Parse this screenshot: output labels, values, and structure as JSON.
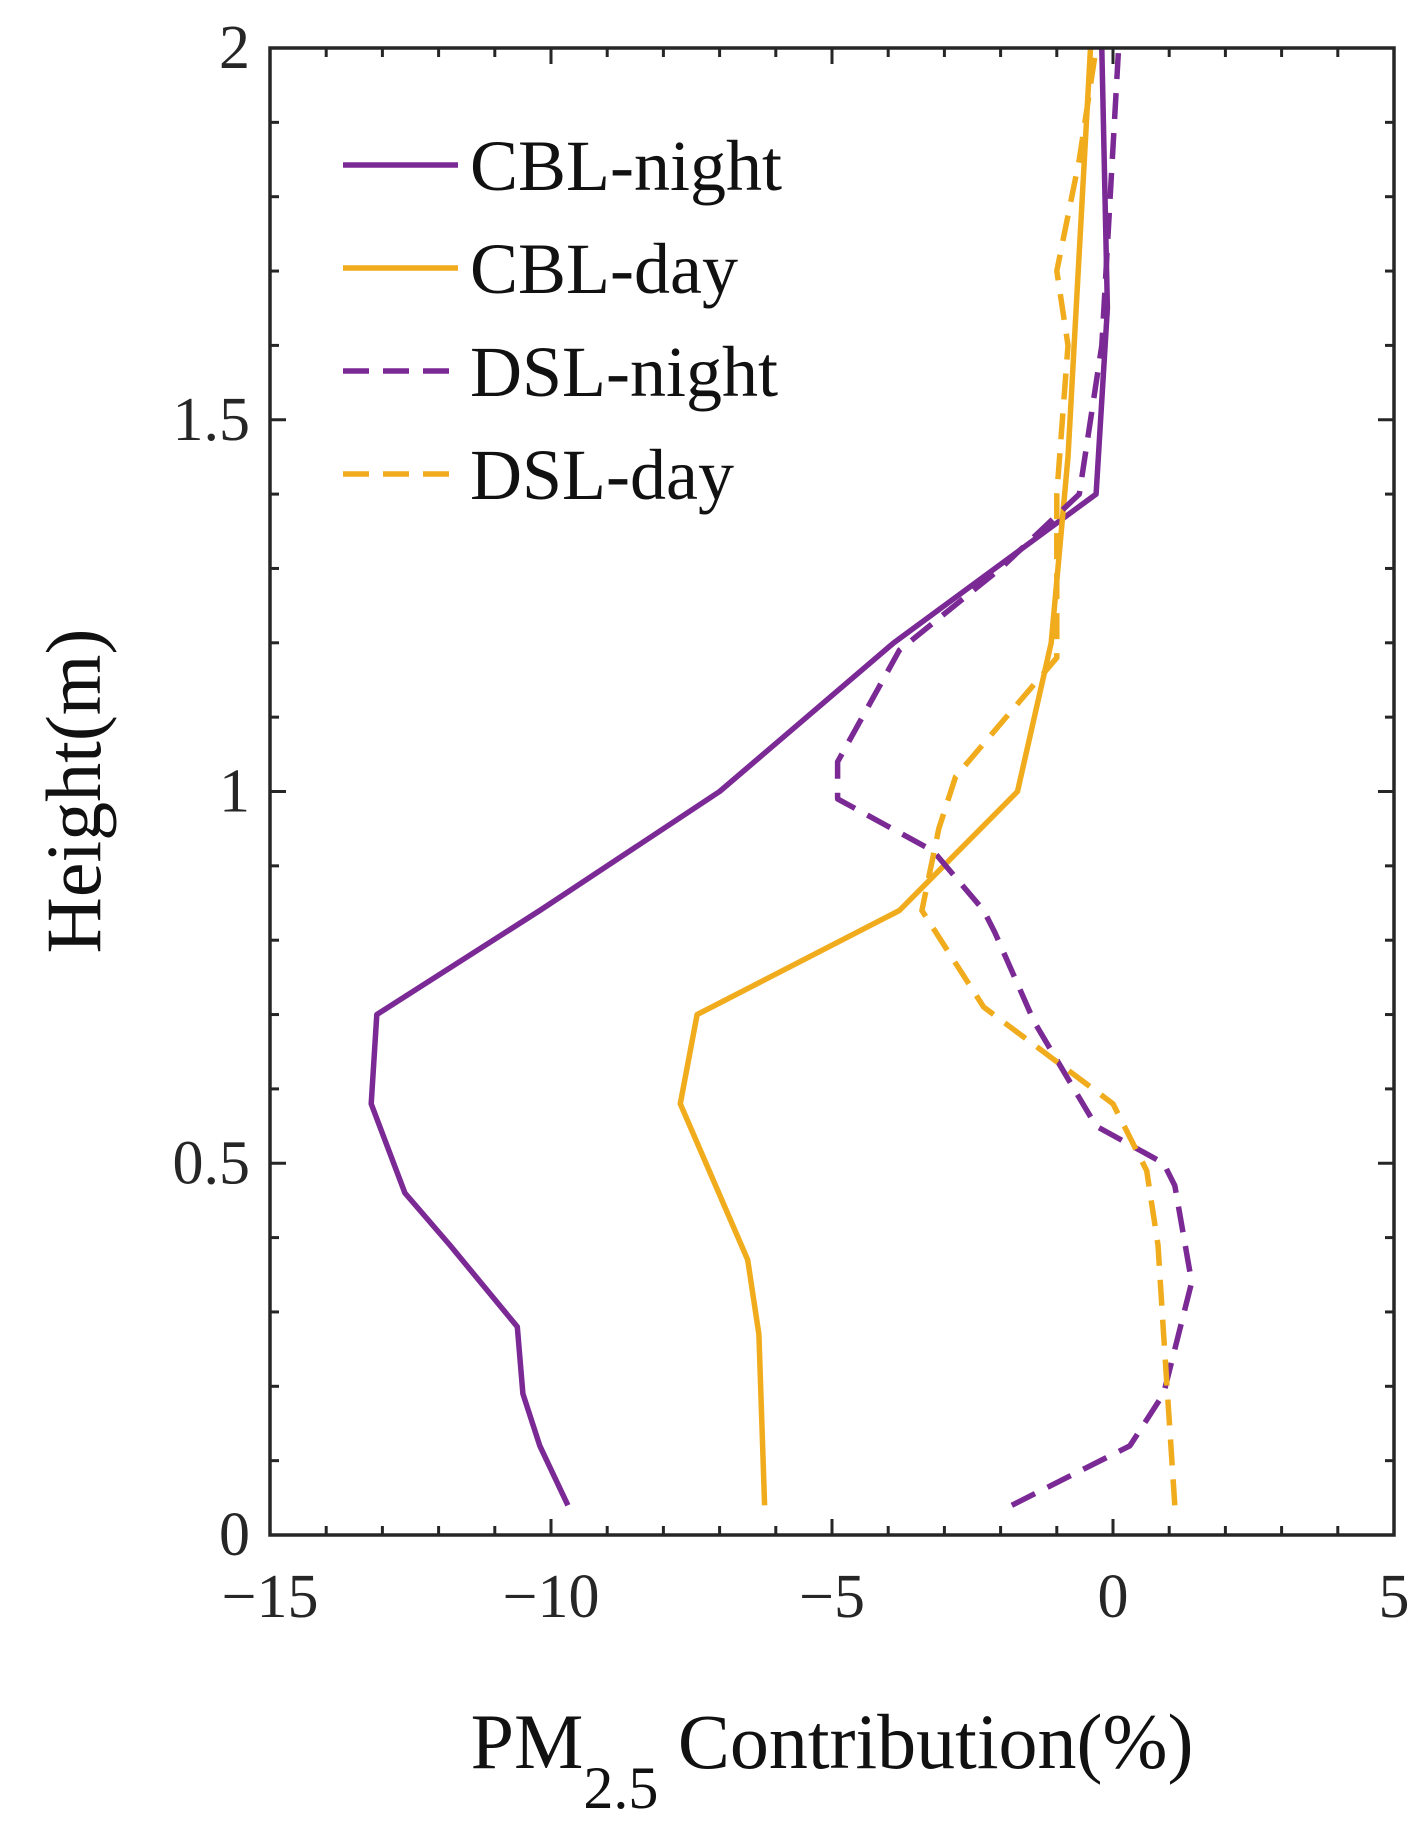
{
  "chart_data": {
    "type": "line",
    "title": "",
    "xlabel": "PM",
    "xlabel_subscript": "2.5",
    "xlabel_suffix": " Contribution(%)",
    "ylabel": "Height(m)",
    "xlim": [
      -15,
      5
    ],
    "ylim": [
      0,
      2
    ],
    "xticks": [
      -15,
      -10,
      -5,
      0,
      5
    ],
    "xtick_labels": [
      "−15",
      "−10",
      "−5",
      "0",
      "5"
    ],
    "xminor_step": 1,
    "yticks": [
      0,
      0.5,
      1,
      1.5,
      2
    ],
    "ytick_labels": [
      "0",
      "0.5",
      "1",
      "1.5",
      "2"
    ],
    "yminor_step": 0.1,
    "grid": false,
    "legend_position": "top-left",
    "series": [
      {
        "name": "CBL-night",
        "color": "#7b2a95",
        "style": "solid",
        "points": [
          [
            -9.7,
            0.04
          ],
          [
            -10.2,
            0.12
          ],
          [
            -10.5,
            0.19
          ],
          [
            -10.6,
            0.28
          ],
          [
            -11.8,
            0.39
          ],
          [
            -12.6,
            0.46
          ],
          [
            -13.2,
            0.58
          ],
          [
            -13.1,
            0.7
          ],
          [
            -10.2,
            0.84
          ],
          [
            -7.0,
            1.0
          ],
          [
            -3.9,
            1.2
          ],
          [
            -0.3,
            1.4
          ],
          [
            -0.1,
            1.65
          ],
          [
            -0.2,
            2.0
          ]
        ]
      },
      {
        "name": "CBL-day",
        "color": "#f0ac1c",
        "style": "solid",
        "points": [
          [
            -6.2,
            0.04
          ],
          [
            -6.3,
            0.27
          ],
          [
            -6.5,
            0.37
          ],
          [
            -7.7,
            0.58
          ],
          [
            -7.4,
            0.7
          ],
          [
            -3.8,
            0.84
          ],
          [
            -1.7,
            1.0
          ],
          [
            -1.1,
            1.2
          ],
          [
            -0.8,
            1.45
          ],
          [
            -0.4,
            2.0
          ]
        ]
      },
      {
        "name": "DSL-night",
        "color": "#7b2a95",
        "style": "dashed",
        "points": [
          [
            -1.8,
            0.04
          ],
          [
            0.3,
            0.12
          ],
          [
            0.9,
            0.19
          ],
          [
            1.4,
            0.34
          ],
          [
            1.1,
            0.47
          ],
          [
            0.9,
            0.5
          ],
          [
            -0.3,
            0.55
          ],
          [
            -1.4,
            0.69
          ],
          [
            -2.1,
            0.81
          ],
          [
            -2.3,
            0.84
          ],
          [
            -3.2,
            0.92
          ],
          [
            -4.9,
            0.99
          ],
          [
            -4.9,
            1.04
          ],
          [
            -3.8,
            1.19
          ],
          [
            -2.0,
            1.3
          ],
          [
            -0.6,
            1.4
          ],
          [
            -0.2,
            1.6
          ],
          [
            0.1,
            2.0
          ]
        ]
      },
      {
        "name": "DSL-day",
        "color": "#f0ac1c",
        "style": "dashed",
        "points": [
          [
            1.1,
            0.04
          ],
          [
            0.9,
            0.27
          ],
          [
            0.8,
            0.39
          ],
          [
            0.6,
            0.49
          ],
          [
            0.0,
            0.58
          ],
          [
            -2.3,
            0.71
          ],
          [
            -3.4,
            0.84
          ],
          [
            -3.1,
            0.95
          ],
          [
            -2.8,
            1.02
          ],
          [
            -1.0,
            1.18
          ],
          [
            -1.0,
            1.4
          ],
          [
            -0.8,
            1.6
          ],
          [
            -1.0,
            1.7
          ],
          [
            -0.6,
            1.85
          ],
          [
            -0.3,
            2.0
          ]
        ]
      }
    ]
  }
}
